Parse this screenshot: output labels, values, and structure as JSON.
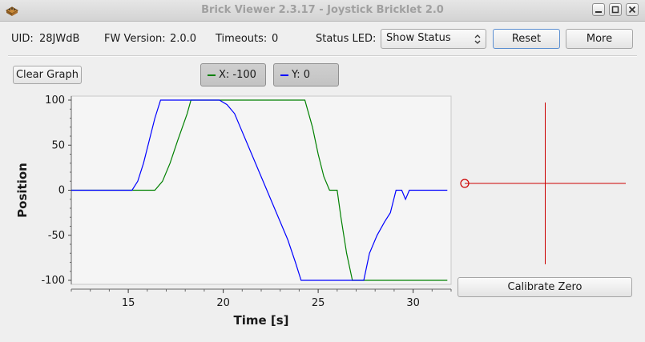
{
  "window": {
    "title": "Brick Viewer 2.3.17 - Joystick Bricklet 2.0"
  },
  "info": {
    "uid_label": "UID:",
    "uid_value": "28JWdB",
    "fw_label": "FW Version:",
    "fw_value": "2.0.0",
    "timeouts_label": "Timeouts:",
    "timeouts_value": "0",
    "status_led_label": "Status LED:",
    "status_led_value": "Show Status",
    "reset_label": "Reset",
    "more_label": "More"
  },
  "controls": {
    "clear_graph_label": "Clear Graph",
    "calibrate_zero_label": "Calibrate Zero"
  },
  "legend": {
    "x_label": "X: -100",
    "y_label": "Y: 0"
  },
  "colors": {
    "x_series": "#008000",
    "y_series": "#0000ff",
    "crosshair": "#cc0000",
    "plot_bg": "#f5f5f5"
  },
  "chart_data": {
    "type": "line",
    "xlabel": "Time [s]",
    "ylabel": "Position",
    "xlim": [
      12,
      32
    ],
    "ylim": [
      -100,
      100
    ],
    "x_ticks": [
      15,
      20,
      25,
      30
    ],
    "y_ticks": [
      100,
      50,
      0,
      -50,
      -100
    ],
    "series": [
      {
        "name": "X",
        "color": "#008000",
        "points": [
          [
            12.0,
            0
          ],
          [
            15.2,
            0
          ],
          [
            16.4,
            0
          ],
          [
            16.8,
            10
          ],
          [
            17.2,
            30
          ],
          [
            17.6,
            55
          ],
          [
            18.1,
            85
          ],
          [
            18.3,
            100
          ],
          [
            24.3,
            100
          ],
          [
            24.7,
            70
          ],
          [
            25.0,
            40
          ],
          [
            25.3,
            15
          ],
          [
            25.6,
            0
          ],
          [
            26.0,
            0
          ],
          [
            26.2,
            -30
          ],
          [
            26.5,
            -70
          ],
          [
            26.8,
            -100
          ],
          [
            31.8,
            -100
          ]
        ]
      },
      {
        "name": "Y",
        "color": "#0000ff",
        "points": [
          [
            12.0,
            0
          ],
          [
            15.2,
            0
          ],
          [
            15.5,
            10
          ],
          [
            15.8,
            30
          ],
          [
            16.1,
            55
          ],
          [
            16.4,
            80
          ],
          [
            16.7,
            100
          ],
          [
            19.8,
            100
          ],
          [
            20.2,
            95
          ],
          [
            20.6,
            85
          ],
          [
            20.9,
            70
          ],
          [
            21.2,
            55
          ],
          [
            21.6,
            35
          ],
          [
            21.9,
            20
          ],
          [
            22.3,
            0
          ],
          [
            22.6,
            -15
          ],
          [
            23.0,
            -35
          ],
          [
            23.4,
            -55
          ],
          [
            23.8,
            -80
          ],
          [
            24.1,
            -100
          ],
          [
            27.4,
            -100
          ],
          [
            27.7,
            -70
          ],
          [
            28.1,
            -50
          ],
          [
            28.5,
            -35
          ],
          [
            28.8,
            -25
          ],
          [
            29.1,
            0
          ],
          [
            29.4,
            0
          ],
          [
            29.6,
            -10
          ],
          [
            29.8,
            0
          ],
          [
            30.5,
            0
          ],
          [
            31.0,
            0
          ],
          [
            31.8,
            0
          ]
        ]
      }
    ]
  },
  "crosshair": {
    "x_value": -100,
    "y_value": 0
  }
}
